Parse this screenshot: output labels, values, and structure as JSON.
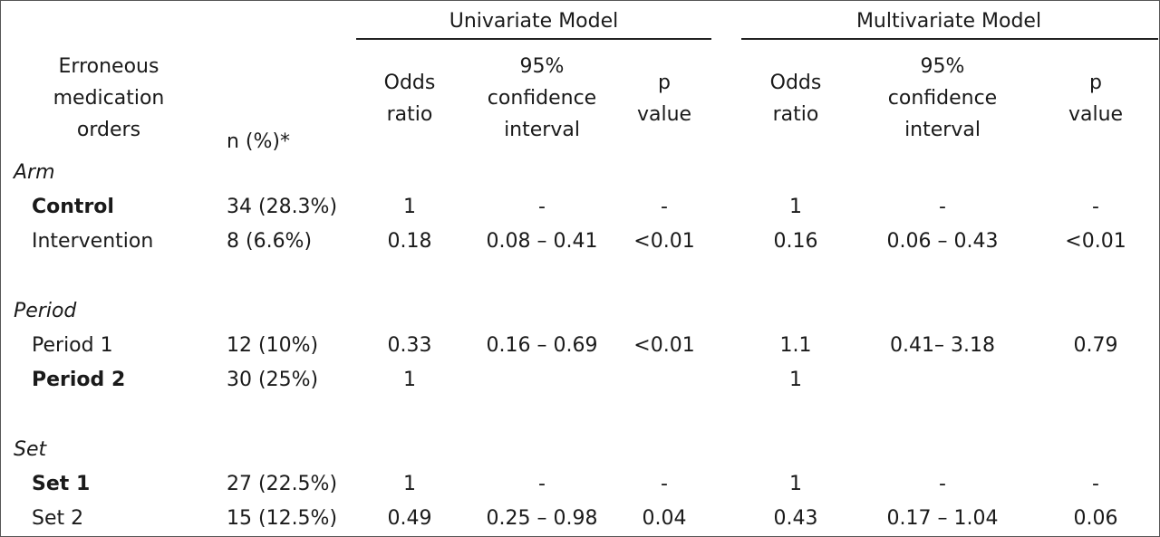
{
  "header": {
    "univariate_label": "Univariate Model",
    "multivariate_label": "Multivariate Model",
    "outcome_label_lines": [
      "Erroneous",
      "medication",
      "orders"
    ],
    "n_label": "n (%)*",
    "odds_lines": [
      "Odds",
      "ratio"
    ],
    "ci_lines": [
      "95%",
      "confidence",
      "interval"
    ],
    "p_lines": [
      "p",
      "value"
    ]
  },
  "sections": [
    {
      "title": "Arm",
      "rows": [
        {
          "label": "Control",
          "bold": true,
          "n": "34 (28.3%)",
          "uni_or": "1",
          "uni_ci": "-",
          "uni_p": "-",
          "multi_or": "1",
          "multi_ci": "-",
          "multi_p": "-"
        },
        {
          "label": "Intervention",
          "bold": false,
          "n": "8 (6.6%)",
          "uni_or": "0.18",
          "uni_ci": "0.08 –  0.41",
          "uni_p": "<0.01",
          "multi_or": "0.16",
          "multi_ci": "0.06 – 0.43",
          "multi_p": "<0.01"
        }
      ]
    },
    {
      "title": "Period",
      "rows": [
        {
          "label": "Period 1",
          "bold": false,
          "n": "12 (10%)",
          "uni_or": "0.33",
          "uni_ci": "0.16 – 0.69",
          "uni_p": "<0.01",
          "multi_or": "1.1",
          "multi_ci": "0.41– 3.18",
          "multi_p": "0.79"
        },
        {
          "label": "Period 2",
          "bold": true,
          "n": "30 (25%)",
          "uni_or": "1",
          "uni_ci": "",
          "uni_p": "",
          "multi_or": "1",
          "multi_ci": "",
          "multi_p": ""
        }
      ]
    },
    {
      "title": "Set",
      "rows": [
        {
          "label": "Set 1",
          "bold": true,
          "n": "27 (22.5%)",
          "uni_or": "1",
          "uni_ci": "-",
          "uni_p": "-",
          "multi_or": "1",
          "multi_ci": "-",
          "multi_p": "-"
        },
        {
          "label": "Set 2",
          "bold": false,
          "n": "15 (12.5%)",
          "uni_or": "0.49",
          "uni_ci": "0.25 – 0.98",
          "uni_p": "0.04",
          "multi_or": "0.43",
          "multi_ci": "0.17 – 1.04",
          "multi_p": "0.06"
        }
      ]
    }
  ]
}
